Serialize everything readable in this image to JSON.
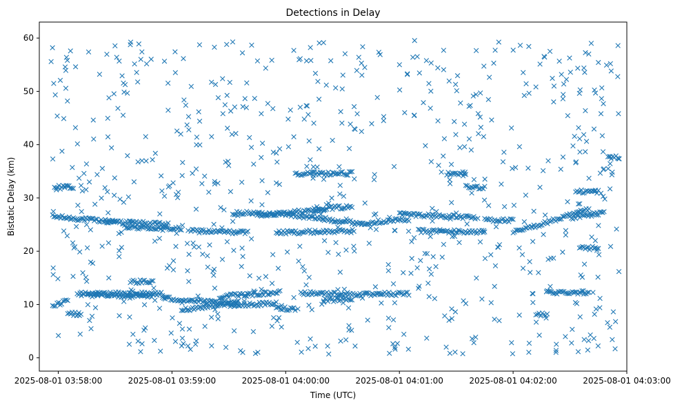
{
  "chart_data": {
    "type": "scatter",
    "title": "Detections in Delay",
    "xlabel": "Time (UTC)",
    "ylabel": "Bistatic Delay (km)",
    "marker": "x",
    "color": "#1f77b4",
    "grid": false,
    "x_range": [
      "2025-08-01 03:57:50",
      "2025-08-01 04:03:00"
    ],
    "ylim": [
      -2.5,
      63
    ],
    "x_ticks": [
      "2025-08-01 03:58:00",
      "2025-08-01 03:59:00",
      "2025-08-01 04:00:00",
      "2025-08-01 04:01:00",
      "2025-08-01 04:02:00",
      "2025-08-01 04:03:00"
    ],
    "y_ticks": [
      0,
      10,
      20,
      30,
      40,
      50,
      60
    ],
    "time_start": "2025-08-01 03:57:56",
    "time_end": "2025-08-01 04:02:56",
    "tracks": [
      {
        "t0": "2025-08-01 03:57:57",
        "t1": "2025-08-01 03:58:30",
        "y0": 26.5,
        "y1": 25.5
      },
      {
        "t0": "2025-08-01 03:58:25",
        "t1": "2025-08-01 03:58:58",
        "y0": 25.6,
        "y1": 25.0
      },
      {
        "t0": "2025-08-01 03:58:35",
        "t1": "2025-08-01 03:59:05",
        "y0": 24.5,
        "y1": 24.2
      },
      {
        "t0": "2025-08-01 03:59:10",
        "t1": "2025-08-01 03:59:40",
        "y0": 23.8,
        "y1": 23.5
      },
      {
        "t0": "2025-08-01 03:59:32",
        "t1": "2025-08-01 03:59:58",
        "y0": 27.2,
        "y1": 27.0
      },
      {
        "t0": "2025-08-01 03:59:45",
        "t1": "2025-08-01 04:00:20",
        "y0": 26.8,
        "y1": 27.8
      },
      {
        "t0": "2025-08-01 03:59:55",
        "t1": "2025-08-01 04:00:36",
        "y0": 23.5,
        "y1": 23.8
      },
      {
        "t0": "2025-08-01 04:00:00",
        "t1": "2025-08-01 04:00:40",
        "y0": 26.9,
        "y1": 25.2
      },
      {
        "t0": "2025-08-01 04:00:15",
        "t1": "2025-08-01 04:00:35",
        "y0": 28.0,
        "y1": 28.3
      },
      {
        "t0": "2025-08-01 04:00:40",
        "t1": "2025-08-01 04:01:05",
        "y0": 25.3,
        "y1": 26.0
      },
      {
        "t0": "2025-08-01 04:01:00",
        "t1": "2025-08-01 04:01:40",
        "y0": 27.0,
        "y1": 26.3
      },
      {
        "t0": "2025-08-01 04:01:10",
        "t1": "2025-08-01 04:01:45",
        "y0": 23.8,
        "y1": 23.6
      },
      {
        "t0": "2025-08-01 04:01:45",
        "t1": "2025-08-01 04:02:00",
        "y0": 26.0,
        "y1": 25.7
      },
      {
        "t0": "2025-08-01 04:02:00",
        "t1": "2025-08-01 04:02:40",
        "y0": 23.5,
        "y1": 27.8
      },
      {
        "t0": "2025-08-01 04:02:30",
        "t1": "2025-08-01 04:02:48",
        "y0": 26.2,
        "y1": 27.3
      },
      {
        "t0": "2025-08-01 03:57:57",
        "t1": "2025-08-01 03:58:05",
        "y0": 9.5,
        "y1": 11.0
      },
      {
        "t0": "2025-08-01 03:58:10",
        "t1": "2025-08-01 03:58:55",
        "y0": 12.0,
        "y1": 12.0
      },
      {
        "t0": "2025-08-01 03:58:15",
        "t1": "2025-08-01 03:58:50",
        "y0": 11.8,
        "y1": 11.6
      },
      {
        "t0": "2025-08-01 03:58:55",
        "t1": "2025-08-01 03:59:35",
        "y0": 11.2,
        "y1": 10.0
      },
      {
        "t0": "2025-08-01 03:59:05",
        "t1": "2025-08-01 03:59:35",
        "y0": 9.0,
        "y1": 10.5
      },
      {
        "t0": "2025-08-01 03:59:25",
        "t1": "2025-08-01 03:59:57",
        "y0": 11.5,
        "y1": 12.3
      },
      {
        "t0": "2025-08-01 03:59:30",
        "t1": "2025-08-01 03:59:55",
        "y0": 9.8,
        "y1": 10.2
      },
      {
        "t0": "2025-08-01 03:59:55",
        "t1": "2025-08-01 04:00:05",
        "y0": 9.3,
        "y1": 9.2
      },
      {
        "t0": "2025-08-01 04:00:08",
        "t1": "2025-08-01 04:00:50",
        "y0": 12.2,
        "y1": 11.8
      },
      {
        "t0": "2025-08-01 04:00:20",
        "t1": "2025-08-01 04:00:35",
        "y0": 10.8,
        "y1": 11.0
      },
      {
        "t0": "2025-08-01 04:00:50",
        "t1": "2025-08-01 04:01:05",
        "y0": 12.0,
        "y1": 12.0
      },
      {
        "t0": "2025-08-01 04:02:18",
        "t1": "2025-08-01 04:02:40",
        "y0": 12.3,
        "y1": 12.3
      },
      {
        "t0": "2025-08-01 04:00:05",
        "t1": "2025-08-01 04:00:35",
        "y0": 34.6,
        "y1": 34.6
      },
      {
        "t0": "2025-08-01 03:57:58",
        "t1": "2025-08-01 03:58:08",
        "y0": 32.0,
        "y1": 32.0
      },
      {
        "t0": "2025-08-01 04:01:35",
        "t1": "2025-08-01 04:01:45",
        "y0": 32.0,
        "y1": 32.0
      },
      {
        "t0": "2025-08-01 04:01:25",
        "t1": "2025-08-01 04:01:35",
        "y0": 34.6,
        "y1": 34.6
      },
      {
        "t0": "2025-08-01 04:02:33",
        "t1": "2025-08-01 04:02:45",
        "y0": 31.2,
        "y1": 31.2
      },
      {
        "t0": "2025-08-01 04:02:35",
        "t1": "2025-08-01 04:02:45",
        "y0": 20.6,
        "y1": 20.6
      },
      {
        "t0": "2025-08-01 04:02:50",
        "t1": "2025-08-01 04:02:56",
        "y0": 37.6,
        "y1": 37.6
      },
      {
        "t0": "2025-08-01 03:58:05",
        "t1": "2025-08-01 03:58:12",
        "y0": 8.2,
        "y1": 8.2
      },
      {
        "t0": "2025-08-01 03:58:38",
        "t1": "2025-08-01 03:58:50",
        "y0": 14.3,
        "y1": 14.3
      },
      {
        "t0": "2025-08-01 04:02:12",
        "t1": "2025-08-01 04:02:18",
        "y0": 8.0,
        "y1": 8.3
      }
    ]
  }
}
